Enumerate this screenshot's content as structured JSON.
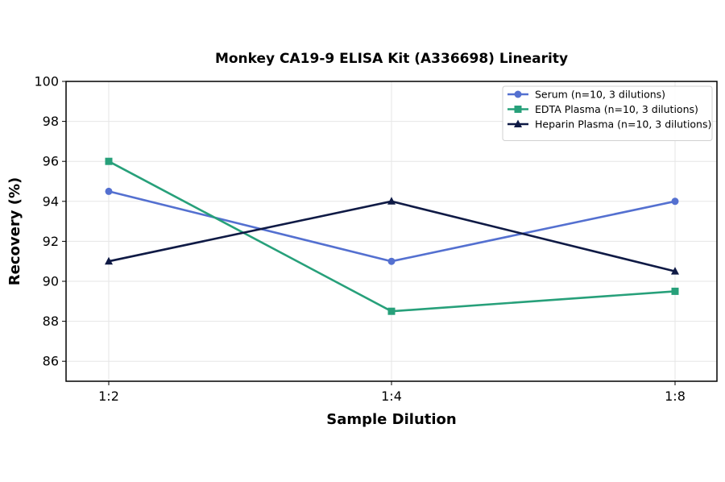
{
  "chart_data": {
    "type": "line",
    "title": "Monkey CA19-9 ELISA Kit (A336698) Linearity",
    "xlabel": "Sample Dilution",
    "ylabel": "Recovery (%)",
    "categories": [
      "1:2",
      "1:4",
      "1:8"
    ],
    "ylim": [
      85,
      100
    ],
    "yticks": [
      86,
      88,
      90,
      92,
      94,
      96,
      98,
      100
    ],
    "grid": true,
    "legend_position": "top-right",
    "series": [
      {
        "name": "Serum (n=10, 3 dilutions)",
        "values": [
          94.5,
          91.0,
          94.0
        ],
        "color": "#5470d0",
        "marker": "circle"
      },
      {
        "name": "EDTA Plasma (n=10, 3 dilutions)",
        "values": [
          96.0,
          88.5,
          89.5
        ],
        "color": "#27a07a",
        "marker": "square"
      },
      {
        "name": "Heparin Plasma (n=10, 3 dilutions)",
        "values": [
          91.0,
          94.0,
          90.5
        ],
        "color": "#0f1a45",
        "marker": "triangle"
      }
    ]
  }
}
